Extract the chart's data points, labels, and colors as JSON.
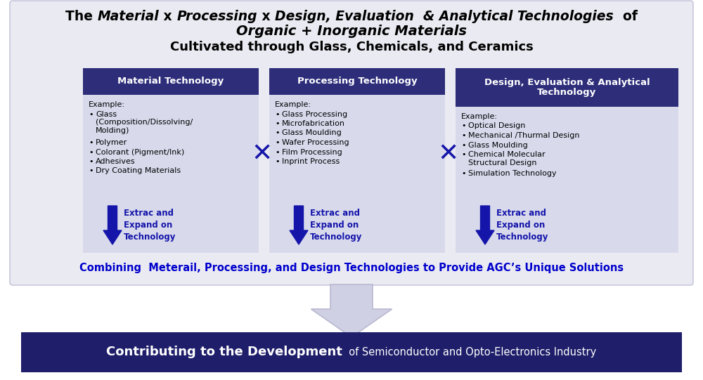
{
  "bg_outer": "#ffffff",
  "bg_panel": "#eaeaf2",
  "bg_panel_edge": "#c0c0d8",
  "title_line2": "Organic + Inorganic Materials",
  "title_line3": "Cultivated through Glass, Chemicals, and Ceramics",
  "header_bg": "#2d2d7a",
  "header_text_color": "#ffffff",
  "box_bg": "#d8daec",
  "col1_header": "Material Technology",
  "col2_header": "Processing Technology",
  "col3_header": "Design, Evaluation & Analytical\nTechnology",
  "col1_items": [
    "Example:",
    "Glass\n(Composition/Dissolving/\nMolding)",
    "Polymer",
    "Colorant (Pigment/Ink)",
    "Adhesives",
    "Dry Coating Materials"
  ],
  "col2_items": [
    "Example:",
    "Glass Processing",
    "Microfabrication",
    "Glass Moulding",
    "Wafer Processing",
    "Film Processing",
    "Inprint Process"
  ],
  "col3_items": [
    "Example:",
    "Optical Design",
    "Mechanical /Thurmal Design",
    "Glass Moulding",
    "Chemical Molecular\nStructural Design",
    "Simulation Technology"
  ],
  "arrow_blue": "#1515aa",
  "expand_text": "Extrac and\nExpand on\nTechnology",
  "combine_text": "Combining  Meterail, Processing, and Design Technologies to Provide AGC’s Unique Solutions",
  "combine_color": "#0000cc",
  "large_arrow_fill": "#d0d0e4",
  "large_arrow_edge": "#b8b8d0",
  "bottom_bg": "#1e1e6a",
  "bottom_bold": "Contributing to the Development",
  "bottom_normal": "  of Semiconductor and Opto-Electronics Industry",
  "bottom_color": "#ffffff"
}
